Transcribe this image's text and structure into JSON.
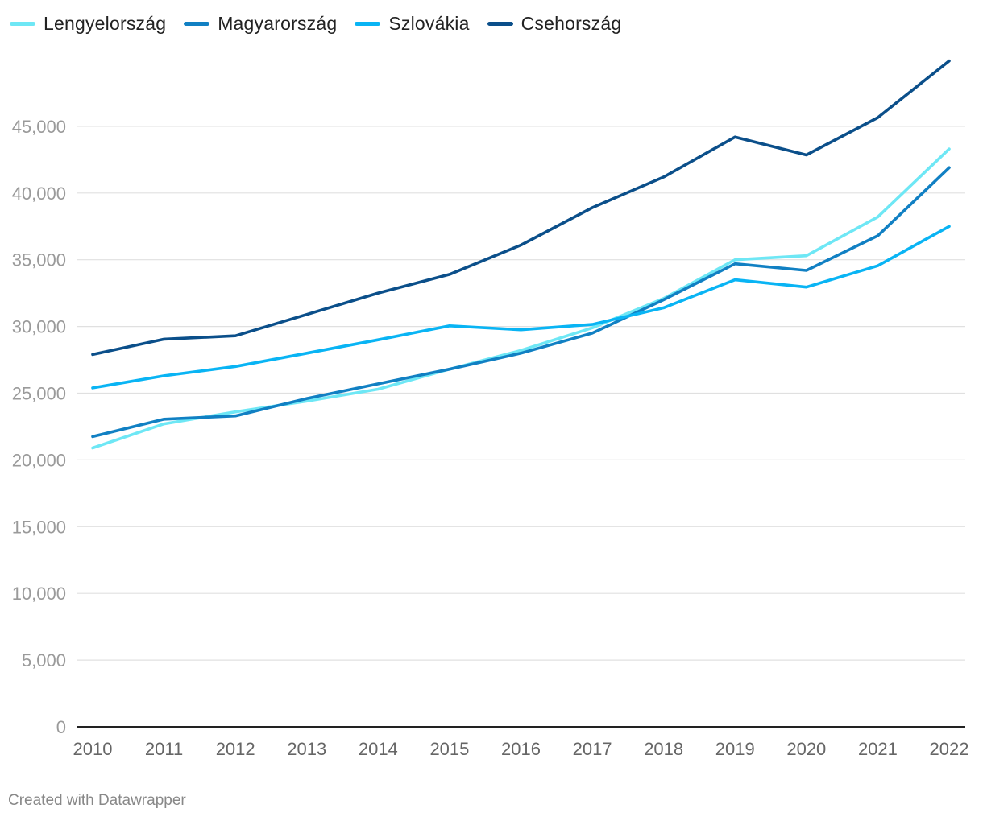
{
  "chart_data": {
    "type": "line",
    "x": [
      "2010",
      "2011",
      "2012",
      "2013",
      "2014",
      "2015",
      "2016",
      "2017",
      "2018",
      "2019",
      "2020",
      "2021",
      "2022"
    ],
    "series": [
      {
        "name": "Lengyelország",
        "color": "#6ee7f5",
        "values": [
          20900,
          22700,
          23600,
          24400,
          25300,
          26800,
          28200,
          29900,
          32100,
          35000,
          35300,
          38200,
          43300
        ]
      },
      {
        "name": "Magyarország",
        "color": "#1180c3",
        "values": [
          21750,
          23050,
          23300,
          24600,
          25700,
          26800,
          28000,
          29500,
          32000,
          34700,
          34200,
          36800,
          41900
        ]
      },
      {
        "name": "Szlovákia",
        "color": "#09b4f4",
        "values": [
          25400,
          26300,
          27000,
          28000,
          29000,
          30050,
          29750,
          30150,
          31400,
          33500,
          32950,
          34550,
          37500
        ]
      },
      {
        "name": "Csehország",
        "color": "#0b4f8a",
        "values": [
          27900,
          29050,
          29300,
          30900,
          32500,
          33900,
          36100,
          38900,
          41200,
          44200,
          42850,
          45650,
          49900
        ]
      }
    ],
    "y_ticks": [
      "0",
      "5,000",
      "10,000",
      "15,000",
      "20,000",
      "25,000",
      "30,000",
      "35,000",
      "40,000",
      "45,000"
    ],
    "ylim": [
      0,
      50000
    ],
    "xlabel": "",
    "ylabel": "",
    "grid": true,
    "legend_position": "top-left"
  },
  "footer": {
    "credit": "Created with Datawrapper"
  }
}
